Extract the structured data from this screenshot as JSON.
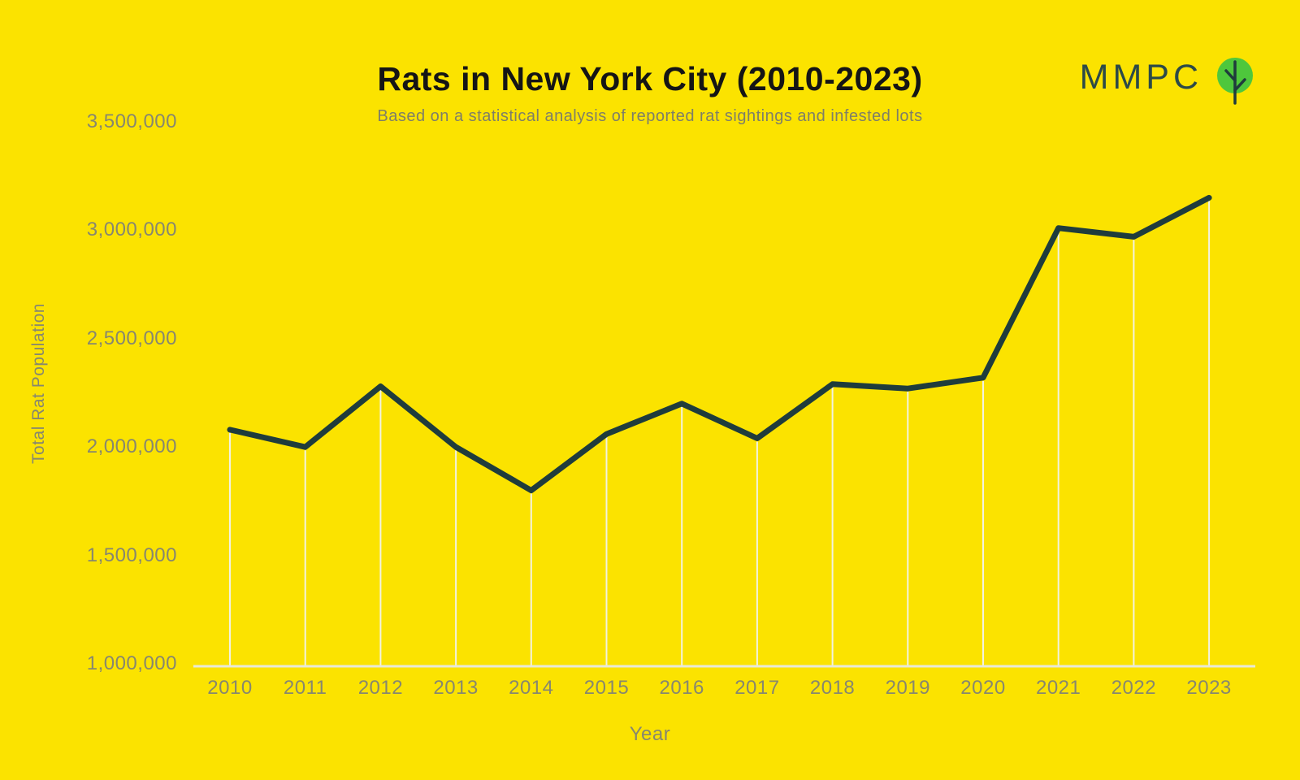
{
  "page": {
    "background_color": "#FBE300"
  },
  "header": {
    "title": "Rats in New York City (2010-2023)",
    "subtitle": "Based on a statistical analysis of reported rat sightings and infested lots"
  },
  "logo": {
    "text": "MMPC",
    "icon": "tree-in-circle-icon",
    "text_color": "#2C4A48",
    "circle_color": "#4EC73C",
    "tree_color": "#1F3C3C"
  },
  "chart_data": {
    "type": "line",
    "title": "Rats in New York City (2010-2023)",
    "subtitle": "Based on a statistical analysis of reported rat sightings and infested lots",
    "xlabel": "Year",
    "ylabel": "Total Rat Population",
    "x": [
      2010,
      2011,
      2012,
      2013,
      2014,
      2015,
      2016,
      2017,
      2018,
      2019,
      2020,
      2021,
      2022,
      2023
    ],
    "series_name": "Total Rat Population",
    "values": [
      2080000,
      2000000,
      2280000,
      2000000,
      1800000,
      2060000,
      2200000,
      2040000,
      2290000,
      2270000,
      2320000,
      3010000,
      2970000,
      3150000
    ],
    "ylim": [
      1000000,
      3500000
    ],
    "y_ticks": [
      {
        "value": 1000000,
        "label": "1,000,000"
      },
      {
        "value": 1500000,
        "label": "1,500,000"
      },
      {
        "value": 2000000,
        "label": "2,000,000"
      },
      {
        "value": 2500000,
        "label": "2,500,000"
      },
      {
        "value": 3000000,
        "label": "3,000,000"
      },
      {
        "value": 3500000,
        "label": "3,500,000"
      }
    ],
    "grid": "vertical drop-lines from each data point to the x-axis",
    "legend": "none",
    "line_color": "#1F3C3C",
    "axis_line_color": "#E9E9D8",
    "gridline_color": "#F2F2E0",
    "tick_label_color": "#87876F",
    "title_color": "#151515",
    "subtitle_color": "#7E7E68"
  }
}
